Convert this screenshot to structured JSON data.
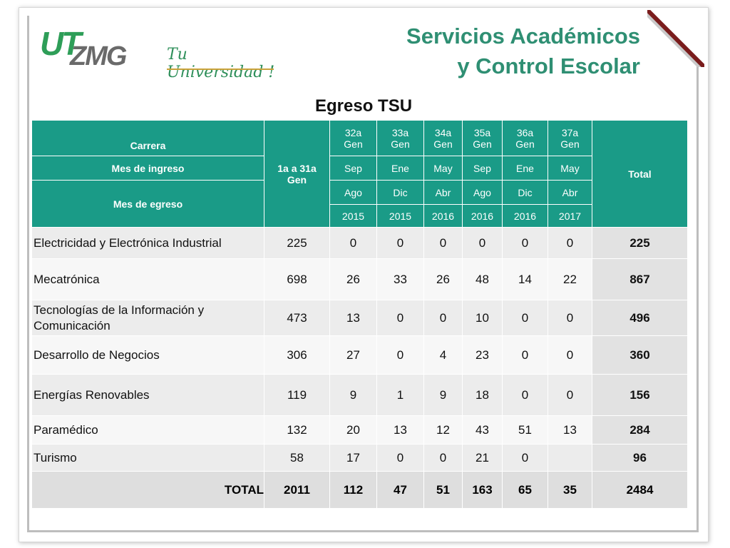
{
  "header": {
    "logo_ut": "UT",
    "logo_zmg": "ZMG",
    "logo_tagline": "Tu Universidad !",
    "title_line1": "Servicios Académicos",
    "title_line2": "y Control Escolar"
  },
  "table": {
    "subtitle": "Egreso TSU",
    "head": {
      "carrera": "Carrera",
      "mes_ingreso": "Mes de ingreso",
      "mes_egreso": "Mes de egreso",
      "first_gen": "1a a 31a Gen",
      "total": "Total",
      "generations": [
        {
          "gen": "32a Gen",
          "ingreso": "Sep",
          "egreso_mes": "Ago",
          "egreso_anio": "2015"
        },
        {
          "gen": "33a Gen",
          "ingreso": "Ene",
          "egreso_mes": "Dic",
          "egreso_anio": "2015"
        },
        {
          "gen": "34a Gen",
          "ingreso": "May",
          "egreso_mes": "Abr",
          "egreso_anio": "2016"
        },
        {
          "gen": "35a Gen",
          "ingreso": "Sep",
          "egreso_mes": "Ago",
          "egreso_anio": "2016"
        },
        {
          "gen": "36a Gen",
          "ingreso": "Ene",
          "egreso_mes": "Dic",
          "egreso_anio": "2016"
        },
        {
          "gen": "37a Gen",
          "ingreso": "May",
          "egreso_mes": "Abr",
          "egreso_anio": "2017"
        }
      ]
    },
    "rows": [
      {
        "name": "Electricidad y Electrónica Industrial",
        "values": [
          "225",
          "0",
          "0",
          "0",
          "0",
          "0",
          "0"
        ],
        "total": "225"
      },
      {
        "name": "Mecatrónica",
        "values": [
          "698",
          "26",
          "33",
          "26",
          "48",
          "14",
          "22"
        ],
        "total": "867"
      },
      {
        "name": "Tecnologías de la Información y Comunicación",
        "values": [
          "473",
          "13",
          "0",
          "0",
          "10",
          "0",
          "0"
        ],
        "total": "496"
      },
      {
        "name": "Desarrollo de Negocios",
        "values": [
          "306",
          "27",
          "0",
          "4",
          "23",
          "0",
          "0"
        ],
        "total": "360"
      },
      {
        "name": "Energías Renovables",
        "values": [
          "119",
          "9",
          "1",
          "9",
          "18",
          "0",
          "0"
        ],
        "total": "156"
      },
      {
        "name": "Paramédico",
        "values": [
          "132",
          "20",
          "13",
          "12",
          "43",
          "51",
          "13"
        ],
        "total": "284"
      },
      {
        "name": "Turismo",
        "values": [
          "58",
          "17",
          "0",
          "0",
          "21",
          "0",
          ""
        ],
        "total": "96"
      }
    ],
    "totals": {
      "label": "TOTAL",
      "values": [
        "2011",
        "112",
        "47",
        "51",
        "163",
        "65",
        "35"
      ],
      "total": "2484"
    }
  },
  "colors": {
    "header_bg": "#1a9b87",
    "title": "#2f8f73",
    "logo_green": "#2e9e58",
    "logo_gray": "#6a6a6a"
  }
}
